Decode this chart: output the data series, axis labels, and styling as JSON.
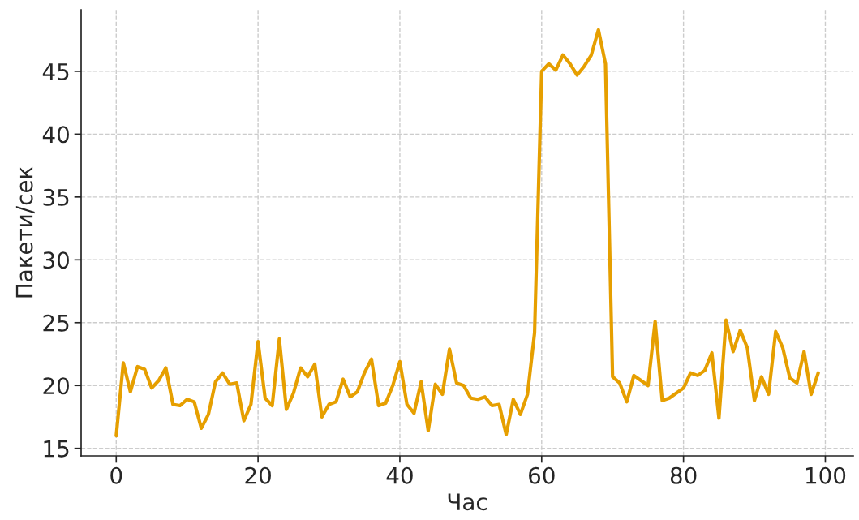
{
  "chart_data": {
    "type": "line",
    "xlabel": "Час",
    "ylabel": "Пакети/сек",
    "x": [
      0,
      1,
      2,
      3,
      4,
      5,
      6,
      7,
      8,
      9,
      10,
      11,
      12,
      13,
      14,
      15,
      16,
      17,
      18,
      19,
      20,
      21,
      22,
      23,
      24,
      25,
      26,
      27,
      28,
      29,
      30,
      31,
      32,
      33,
      34,
      35,
      36,
      37,
      38,
      39,
      40,
      41,
      42,
      43,
      44,
      45,
      46,
      47,
      48,
      49,
      50,
      51,
      52,
      53,
      54,
      55,
      56,
      57,
      58,
      59,
      60,
      61,
      62,
      63,
      64,
      65,
      66,
      67,
      68,
      69,
      70,
      71,
      72,
      73,
      74,
      75,
      76,
      77,
      78,
      79,
      80,
      81,
      82,
      83,
      84,
      85,
      86,
      87,
      88,
      89,
      90,
      91,
      92,
      93,
      94,
      95,
      96,
      97,
      98,
      99
    ],
    "series": [
      {
        "color": "#e69f00",
        "values": [
          16.0,
          21.8,
          19.5,
          21.5,
          21.3,
          19.8,
          20.4,
          21.4,
          18.5,
          18.4,
          18.9,
          18.7,
          16.6,
          17.7,
          20.3,
          21.0,
          20.1,
          20.2,
          17.2,
          18.5,
          23.5,
          19.0,
          18.4,
          23.7,
          18.1,
          19.4,
          21.4,
          20.7,
          21.7,
          17.5,
          18.5,
          18.7,
          20.5,
          19.1,
          19.5,
          21.0,
          22.1,
          18.4,
          18.6,
          20.0,
          21.9,
          18.5,
          17.8,
          20.3,
          16.4,
          20.1,
          19.3,
          22.9,
          20.2,
          20.0,
          19.0,
          18.9,
          19.1,
          18.4,
          18.5,
          16.1,
          18.9,
          17.7,
          19.3,
          24.2,
          45.0,
          45.6,
          45.1,
          46.3,
          45.6,
          44.7,
          45.4,
          46.3,
          48.3,
          45.6,
          20.7,
          20.2,
          18.7,
          20.8,
          20.4,
          20.0,
          25.1,
          18.8,
          19.0,
          19.4,
          19.8,
          21.0,
          20.8,
          21.2,
          22.6,
          17.4,
          25.2,
          22.7,
          24.4,
          23.0,
          18.8,
          20.7,
          19.3,
          24.3,
          23.0,
          20.6,
          20.2,
          22.7,
          19.3,
          21.0
        ]
      }
    ],
    "xlim": [
      -4.95,
      103.95
    ],
    "ylim": [
      14.4,
      49.9
    ],
    "xticks": [
      0,
      20,
      40,
      60,
      80,
      100
    ],
    "yticks": [
      15,
      20,
      25,
      30,
      35,
      40,
      45
    ],
    "grid": true,
    "line_style": "solid",
    "marker": "none"
  }
}
